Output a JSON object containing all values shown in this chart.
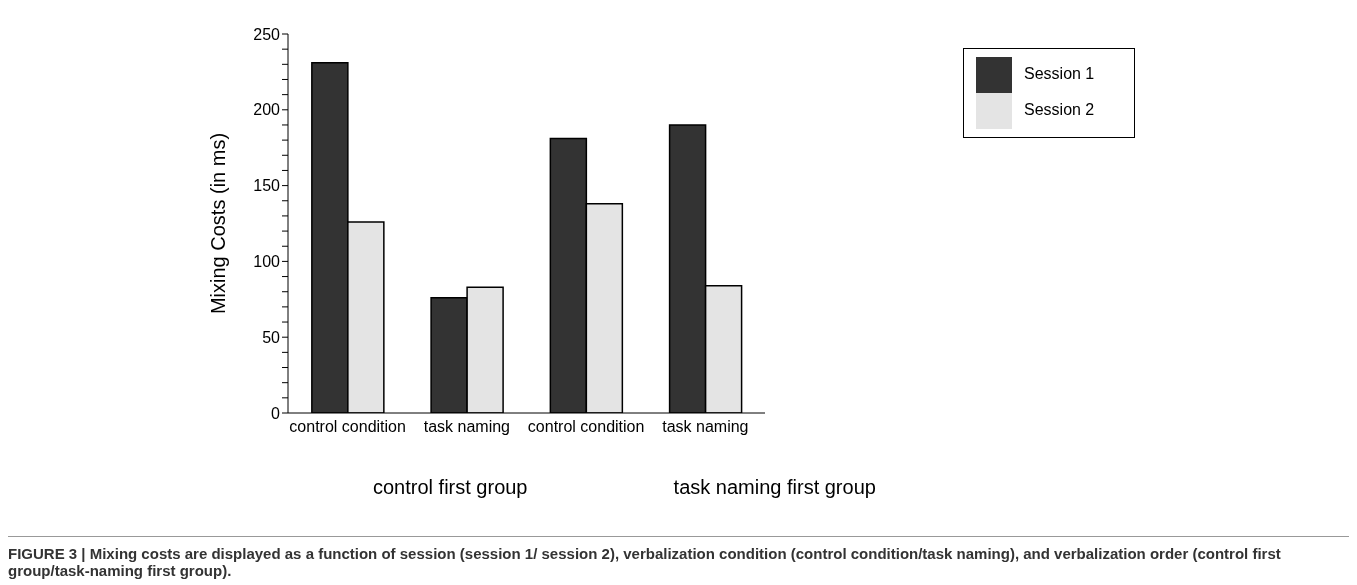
{
  "chart_data": {
    "type": "bar",
    "ylabel": "Mixing Costs (in ms)",
    "categories": [
      "control condition",
      "task naming",
      "control condition",
      "task naming"
    ],
    "series": [
      {
        "name": "Session 1",
        "color": "#333333",
        "values": [
          231,
          76,
          181,
          190
        ]
      },
      {
        "name": "Session 2",
        "color": "#e4e4e4",
        "values": [
          126,
          83,
          138,
          84
        ]
      }
    ],
    "ylim": [
      0,
      250
    ],
    "yticks": [
      0,
      {
        "value": 10,
        "label": null
      },
      {
        "value": 20,
        "label": null
      },
      {
        "value": 30,
        "label": null
      },
      {
        "value": 40,
        "label": null
      },
      50,
      {
        "value": 60,
        "label": null
      },
      {
        "value": 70,
        "label": null
      },
      {
        "value": 80,
        "label": null
      },
      {
        "value": 90,
        "label": null
      },
      100,
      {
        "value": 110,
        "label": null
      },
      {
        "value": 120,
        "label": null
      },
      {
        "value": 130,
        "label": null
      },
      {
        "value": 140,
        "label": null
      },
      150,
      {
        "value": 160,
        "label": null
      },
      {
        "value": 170,
        "label": null
      },
      {
        "value": 180,
        "label": null
      },
      {
        "value": 190,
        "label": null
      },
      200,
      {
        "value": 210,
        "label": null
      },
      {
        "value": 220,
        "label": null
      },
      {
        "value": 230,
        "label": null
      },
      {
        "value": 240,
        "label": null
      },
      250
    ],
    "grid": false,
    "legend": "top right",
    "annotations": [
      "control first group",
      "task naming first group",
      "FIGURE 3 | Mixing costs are displayed as a function of session (session 1/ session 2), verbalization condition (control condition/task naming), and verbalization order (control first group/task-naming first group)."
    ]
  }
}
